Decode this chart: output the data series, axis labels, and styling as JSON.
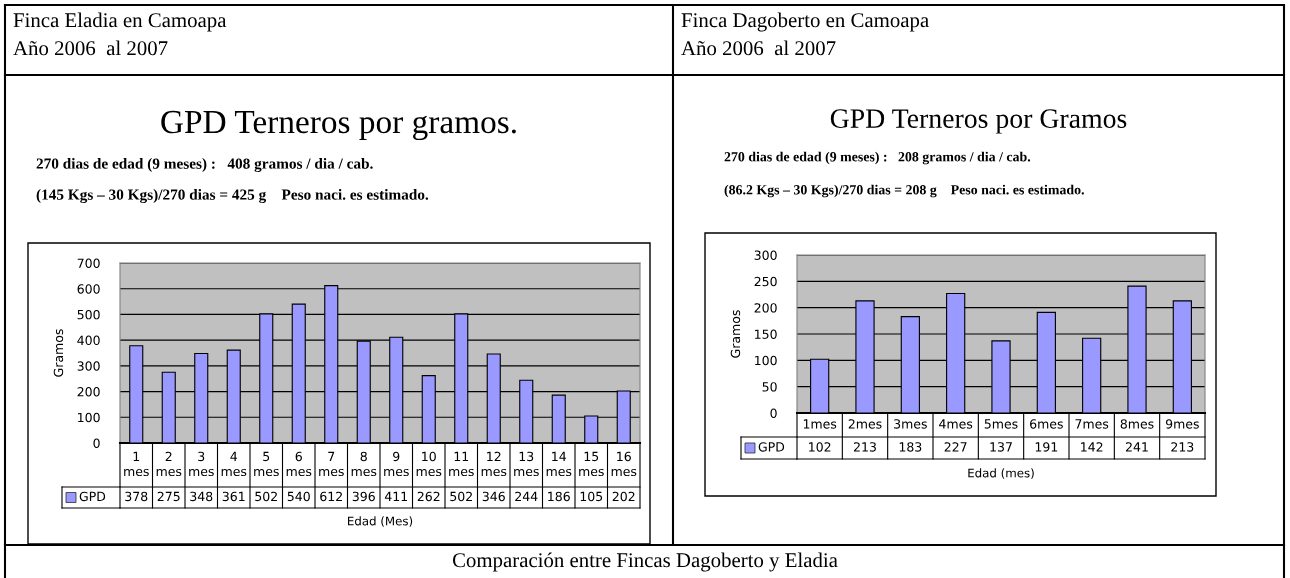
{
  "chart_data": [
    {
      "type": "bar",
      "title": "GPD Terneros por gramos.",
      "annotations": [
        "Finca Eladia en Camoapa",
        "Año 2006  al 2007",
        "270 dias de edad (9 meses) :   408 gramos / dia / cab.",
        "(145 Kgs – 30 Kgs)/270 dias = 425 g    Peso naci. es estimado."
      ],
      "xlabel": "Edad (Mes)",
      "ylabel": "Gramos",
      "categories": [
        "1 mes",
        "2 mes",
        "3 mes",
        "4 mes",
        "5 mes",
        "6 mes",
        "7 mes",
        "8 mes",
        "9 mes",
        "10 mes",
        "11 mes",
        "12 mes",
        "13 mes",
        "14 mes",
        "15 mes",
        "16 mes"
      ],
      "series": [
        {
          "name": "GPD",
          "color": "#9999ff",
          "values": [
            378,
            275,
            348,
            361,
            502,
            540,
            612,
            396,
            411,
            262,
            502,
            346,
            244,
            186,
            105,
            202
          ]
        }
      ],
      "ylim": [
        0,
        700
      ],
      "yticks": [
        0,
        100,
        200,
        300,
        400,
        500,
        600,
        700
      ],
      "grid": "y",
      "data_labels": true
    },
    {
      "type": "bar",
      "title": "GPD Terneros por Gramos",
      "annotations": [
        "Finca Dagoberto en Camoapa",
        "Año 2006  al 2007",
        "270 dias de edad (9 meses) :   208 gramos / dia / cab.",
        "(86.2 Kgs – 30 Kgs)/270 dias = 208 g    Peso naci. es estimado.",
        "Comparación entre Fincas Dagoberto y Eladia"
      ],
      "xlabel": "Edad (mes)",
      "ylabel": "Gramos",
      "categories": [
        "1mes",
        "2mes",
        "3mes",
        "4mes",
        "5mes",
        "6mes",
        "7mes",
        "8mes",
        "9mes"
      ],
      "series": [
        {
          "name": "GPD",
          "color": "#9999ff",
          "values": [
            102,
            213,
            183,
            227,
            137,
            191,
            142,
            241,
            213
          ]
        }
      ],
      "ylim": [
        0,
        300
      ],
      "yticks": [
        0,
        50,
        100,
        150,
        200,
        250,
        300
      ],
      "grid": "y",
      "data_labels": true
    }
  ]
}
